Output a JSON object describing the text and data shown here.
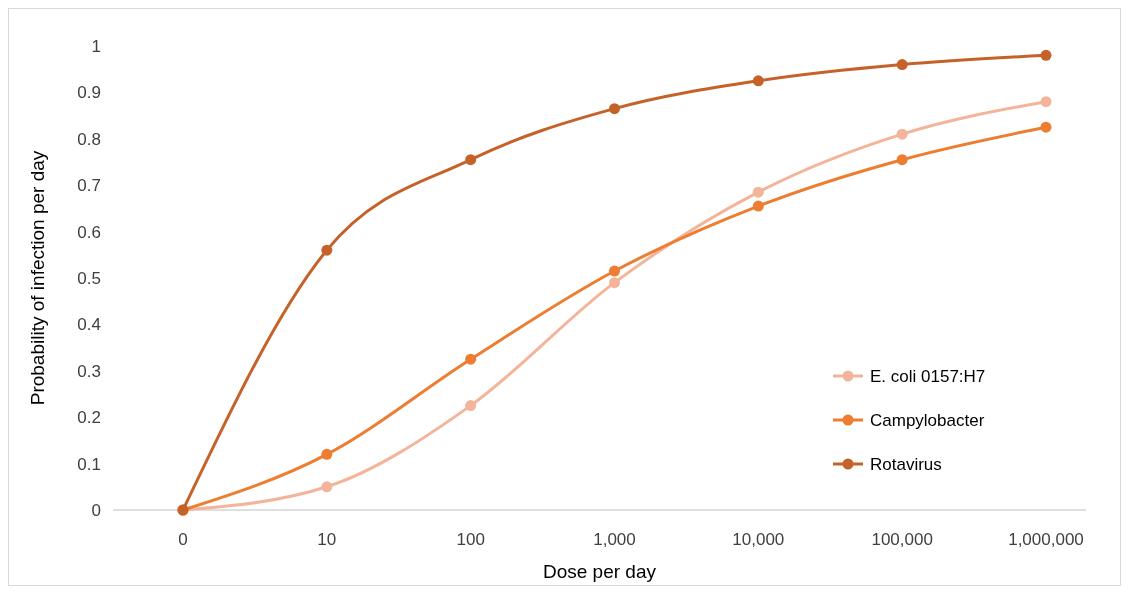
{
  "chart_data": {
    "type": "line",
    "xlabel": "Dose per day",
    "ylabel": "Probability of infection per day",
    "categories": [
      "0",
      "10",
      "100",
      "1,000",
      "10,000",
      "100,000",
      "1,000,000"
    ],
    "series": [
      {
        "name": "E. coli 0157:H7",
        "color": "#f4b49a",
        "values": [
          0,
          0.05,
          0.225,
          0.49,
          0.685,
          0.81,
          0.88
        ]
      },
      {
        "name": "Campylobacter",
        "color": "#ed7d31",
        "values": [
          0,
          0.12,
          0.325,
          0.515,
          0.655,
          0.755,
          0.825
        ]
      },
      {
        "name": "Rotavirus",
        "color": "#c5622a",
        "values": [
          0,
          0.56,
          0.755,
          0.865,
          0.925,
          0.96,
          0.98
        ]
      }
    ],
    "ylim": [
      0,
      1
    ],
    "yticks": [
      0,
      0.1,
      0.2,
      0.3,
      0.4,
      0.5,
      0.6,
      0.7,
      0.8,
      0.9,
      1
    ],
    "grid": false,
    "legend": "right",
    "marker": "circle",
    "line_style": "solid"
  }
}
